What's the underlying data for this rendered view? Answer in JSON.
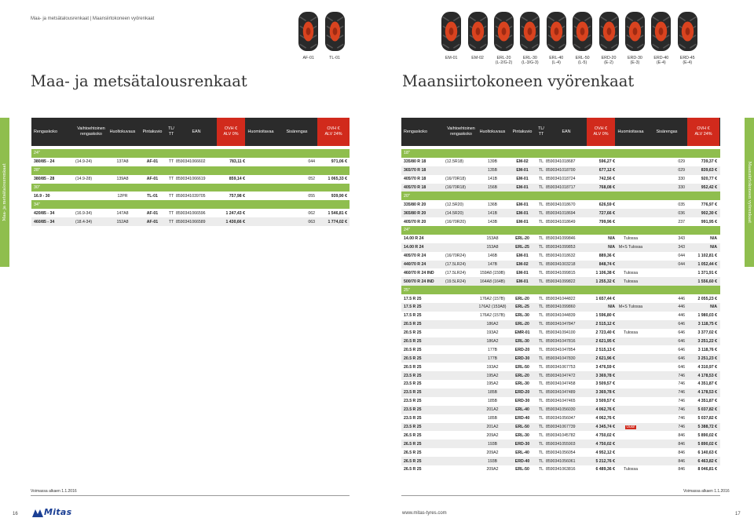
{
  "breadcrumb": "Maa- ja metsätalousrenkaat | Maansiirtokoneen vyörenkaat",
  "left_title": "Maa- ja metsätalousrenkaat",
  "right_title": "Maansiirtokoneen vyörenkaat",
  "left_tyres": [
    {
      "code": "AF-01",
      "code2": ""
    },
    {
      "code": "TL-01",
      "code2": ""
    }
  ],
  "right_tyres": [
    {
      "code": "EM-01",
      "code2": ""
    },
    {
      "code": "EM-02",
      "code2": ""
    },
    {
      "code": "ERL-20",
      "code2": "(L-2/G-2)"
    },
    {
      "code": "ERL-30",
      "code2": "(L-3/G-3)"
    },
    {
      "code": "ERL-40",
      "code2": "(L-4)"
    },
    {
      "code": "ERL-50",
      "code2": "(L-5)"
    },
    {
      "code": "ERD-20",
      "code2": "(E-2)"
    },
    {
      "code": "ERD-30",
      "code2": "(E-3)"
    },
    {
      "code": "ERD-40",
      "code2": "(E-4)"
    },
    {
      "code": "ERD-45",
      "code2": "(E-4)"
    }
  ],
  "headers": {
    "size": "Rengaskoko",
    "alt1": "Vaihtoehtoinen",
    "alt2": "rengaskoko",
    "service": "Huoltokuvaus",
    "pattern": "Pintakuvio",
    "tl1": "TL/",
    "tl2": "TT",
    "ean": "EAN",
    "ovh1": "OVH €",
    "vat0": "ALV 0%",
    "notice": "Huomioitavaa",
    "size_code": "Sisärengas",
    "vat24": "ALV 24%"
  },
  "side_tab_left": "Maa- ja metsätalousrenkaat",
  "side_tab_right": "Maansiirtokoneen vyörenkaat",
  "left_rows": [
    {
      "h": "24\""
    },
    {
      "s": "380/85 - 24",
      "a": "(14.9-24)",
      "sv": "137A8",
      "p": "AF-01",
      "t": "TT",
      "e": "8590341066602",
      "v0": "783,11 €",
      "n": "",
      "k": "044",
      "v24": "971,06 €"
    },
    {
      "h": "28\""
    },
    {
      "s": "380/85 - 28",
      "a": "(14.9-28)",
      "sv": "139A8",
      "p": "AF-01",
      "t": "TT",
      "e": "8590341066619",
      "v0": "859,14 €",
      "n": "",
      "k": "052",
      "v24": "1 065,33 €"
    },
    {
      "h": "30\""
    },
    {
      "s": "16.9 - 30",
      "a": "",
      "sv": "12PR",
      "p": "TL-01",
      "t": "TT",
      "e": "8590341039705",
      "v0": "757,98 €",
      "n": "",
      "k": "055",
      "v24": "939,90 €"
    },
    {
      "h": "34\""
    },
    {
      "s": "420/85 - 34",
      "a": "(16.9-34)",
      "sv": "147A8",
      "p": "AF-01",
      "t": "TT",
      "e": "8590341066596",
      "v0": "1 247,43 €",
      "n": "",
      "k": "062",
      "v24": "1 546,81 €"
    },
    {
      "s": "460/85 - 34",
      "a": "(18.4-34)",
      "sv": "152A8",
      "p": "AF-01",
      "t": "TT",
      "e": "8590341066589",
      "v0": "1 430,66 €",
      "n": "",
      "k": "063",
      "v24": "1 774,02 €"
    }
  ],
  "right_rows": [
    {
      "h": "18\""
    },
    {
      "s": "335/80 R 18",
      "a": "(12.5R18)",
      "sv": "139B",
      "p": "EM-02",
      "t": "TL",
      "e": "8590341018687",
      "v0": "596,27 €",
      "n": "",
      "k": "029",
      "v24": "739,37 €"
    },
    {
      "s": "365/70 R 18",
      "a": "",
      "sv": "135B",
      "p": "EM-01",
      "t": "TL",
      "e": "8590341018700",
      "v0": "677,12 €",
      "n": "",
      "k": "029",
      "v24": "839,63 €"
    },
    {
      "s": "405/70 R 18",
      "a": "(16/70R18)",
      "sv": "141B",
      "p": "EM-01",
      "t": "TL",
      "e": "8590341018724",
      "v0": "742,56 €",
      "n": "",
      "k": "330",
      "v24": "920,77 €"
    },
    {
      "s": "405/70 R 18",
      "a": "(16/70R18)",
      "sv": "156B",
      "p": "EM-01",
      "t": "TL",
      "e": "8590341018717",
      "v0": "768,08 €",
      "n": "",
      "k": "330",
      "v24": "952,42 €"
    },
    {
      "h": "20\""
    },
    {
      "s": "335/80 R 20",
      "a": "(12.5R20)",
      "sv": "136B",
      "p": "EM-01",
      "t": "TL",
      "e": "8590341018670",
      "v0": "626,59 €",
      "n": "",
      "k": "035",
      "v24": "776,97 €"
    },
    {
      "s": "365/80 R 20",
      "a": "(14.5R20)",
      "sv": "141B",
      "p": "EM-01",
      "t": "TL",
      "e": "8590341018694",
      "v0": "727,66 €",
      "n": "",
      "k": "036",
      "v24": "902,30 €"
    },
    {
      "s": "405/70 R 20",
      "a": "(16/70R20)",
      "sv": "143B",
      "p": "EM-01",
      "t": "TL",
      "e": "8590341018649",
      "v0": "799,96 €",
      "n": "",
      "k": "237",
      "v24": "991,95 €"
    },
    {
      "h": "24\""
    },
    {
      "s": "14.00 R 24",
      "a": "",
      "sv": "153A8",
      "p": "ERL-20",
      "t": "TL",
      "e": "8590341099846",
      "v0": "N/A",
      "n": "Tulossa",
      "k": "343",
      "v24": "N/A"
    },
    {
      "s": "14.00 R 24",
      "a": "",
      "sv": "153A8",
      "p": "ERL-25",
      "t": "TL",
      "e": "8590341099853",
      "v0": "N/A",
      "n": "M+S Tulossa",
      "k": "343",
      "v24": "N/A"
    },
    {
      "s": "405/70 R 24",
      "a": "(16/70R24)",
      "sv": "146B",
      "p": "EM-01",
      "t": "TL",
      "e": "8590341018632",
      "v0": "889,36 €",
      "n": "",
      "k": "044",
      "v24": "1 102,81 €"
    },
    {
      "s": "440/70 R 24",
      "a": "(17.5LR24)",
      "sv": "147B",
      "p": "EM-02",
      "t": "TL",
      "e": "8590341003218",
      "v0": "848,74 €",
      "n": "",
      "k": "044",
      "v24": "1 052,44 €"
    },
    {
      "s": "460/70 R 24 IND",
      "a": "(17.5LR24)",
      "sv": "159A8 (159B)",
      "p": "EM-01",
      "t": "TL",
      "e": "8590341099815",
      "v0": "1 106,38 €",
      "n": "Tulossa",
      "k": "",
      "v24": "1 371,91 €"
    },
    {
      "s": "500/70 R 24 IND",
      "a": "(19.5LR24)",
      "sv": "164A8 (164B)",
      "p": "EM-01",
      "t": "TL",
      "e": "8590341099822",
      "v0": "1 255,32 €",
      "n": "Tulossa",
      "k": "",
      "v24": "1 556,60 €"
    },
    {
      "h": "25\""
    },
    {
      "s": "17.5 R 25",
      "a": "",
      "sv": "176A2 (157B)",
      "p": "ERL-20",
      "t": "TL",
      "e": "8590341044822",
      "v0": "1 657,44 €",
      "n": "",
      "k": "446",
      "v24": "2 055,23 €"
    },
    {
      "s": "17.5 R 25",
      "a": "",
      "sv": "176A2 (153A8)",
      "p": "ERL-25",
      "t": "TL",
      "e": "8590341099860",
      "v0": "N/A",
      "n": "M+S Tulossa",
      "k": "446",
      "v24": "N/A"
    },
    {
      "s": "17.5 R 25",
      "a": "",
      "sv": "176A2 (157B)",
      "p": "ERL-30",
      "t": "TL",
      "e": "8590341044839",
      "v0": "1 596,80 €",
      "n": "",
      "k": "446",
      "v24": "1 980,03 €"
    },
    {
      "s": "20.5 R 25",
      "a": "",
      "sv": "186A2",
      "p": "ERL-20",
      "t": "TL",
      "e": "8590341047847",
      "v0": "2 515,12 €",
      "n": "",
      "k": "646",
      "v24": "3 118,75 €"
    },
    {
      "s": "20.5 R 25",
      "a": "",
      "sv": "193A2",
      "p": "EMR-01",
      "t": "TL",
      "e": "8590341094100",
      "v0": "2 723,40 €",
      "n": "Tulossa",
      "k": "646",
      "v24": "3 377,02 €"
    },
    {
      "s": "20.5 R 25",
      "a": "",
      "sv": "186A2",
      "p": "ERL-30",
      "t": "TL",
      "e": "8590341047816",
      "v0": "2 621,95 €",
      "n": "",
      "k": "646",
      "v24": "3 251,22 €"
    },
    {
      "s": "20.5 R 25",
      "a": "",
      "sv": "177B",
      "p": "ERD-20",
      "t": "TL",
      "e": "8590341047854",
      "v0": "2 515,13 €",
      "n": "",
      "k": "646",
      "v24": "3 118,76 €"
    },
    {
      "s": "20.5 R 25",
      "a": "",
      "sv": "177B",
      "p": "ERD-30",
      "t": "TL",
      "e": "8590341047830",
      "v0": "2 621,96 €",
      "n": "",
      "k": "646",
      "v24": "3 251,23 €"
    },
    {
      "s": "20.5 R 25",
      "a": "",
      "sv": "193A2",
      "p": "ERL-50",
      "t": "TL",
      "e": "8590341067753",
      "v0": "3 476,59 €",
      "n": "",
      "k": "646",
      "v24": "4 310,97 €"
    },
    {
      "s": "23.5 R 25",
      "a": "",
      "sv": "195A2",
      "p": "ERL-20",
      "t": "TL",
      "e": "8590341047472",
      "v0": "3 369,78 €",
      "n": "",
      "k": "746",
      "v24": "4 178,53 €"
    },
    {
      "s": "23.5 R 25",
      "a": "",
      "sv": "195A2",
      "p": "ERL-30",
      "t": "TL",
      "e": "8590341047458",
      "v0": "3 509,57 €",
      "n": "",
      "k": "746",
      "v24": "4 351,87 €"
    },
    {
      "s": "23.5 R 25",
      "a": "",
      "sv": "185B",
      "p": "ERD-20",
      "t": "TL",
      "e": "8590341047489",
      "v0": "3 369,78 €",
      "n": "",
      "k": "746",
      "v24": "4 178,53 €"
    },
    {
      "s": "23.5 R 25",
      "a": "",
      "sv": "185B",
      "p": "ERD-30",
      "t": "TL",
      "e": "8590341047465",
      "v0": "3 509,57 €",
      "n": "",
      "k": "746",
      "v24": "4 351,87 €"
    },
    {
      "s": "23.5 R 25",
      "a": "",
      "sv": "201A2",
      "p": "ERL-40",
      "t": "TL",
      "e": "8590341056030",
      "v0": "4 062,76 €",
      "n": "",
      "k": "746",
      "v24": "5 037,82 €"
    },
    {
      "s": "23.5 R 25",
      "a": "",
      "sv": "185B",
      "p": "ERD-40",
      "t": "TL",
      "e": "8590341056047",
      "v0": "4 062,76 €",
      "n": "",
      "k": "746",
      "v24": "5 037,82 €"
    },
    {
      "s": "23.5 R 25",
      "a": "",
      "sv": "201A2",
      "p": "ERL-50",
      "t": "TL",
      "e": "8590341067739",
      "v0": "4 345,74 €",
      "n": "Uusi!",
      "badge": true,
      "k": "746",
      "v24": "5 388,72 €"
    },
    {
      "s": "26.5 R 25",
      "a": "",
      "sv": "209A2",
      "p": "ERL-30",
      "t": "TL",
      "e": "8590341045782",
      "v0": "4 750,02 €",
      "n": "",
      "k": "846",
      "v24": "5 890,02 €"
    },
    {
      "s": "26.5 R 25",
      "a": "",
      "sv": "193B",
      "p": "ERD-30",
      "t": "TL",
      "e": "8590341055903",
      "v0": "4 750,02 €",
      "n": "",
      "k": "846",
      "v24": "5 890,02 €"
    },
    {
      "s": "26.5 R 25",
      "a": "",
      "sv": "209A2",
      "p": "ERL-40",
      "t": "TL",
      "e": "8590341056054",
      "v0": "4 952,12 €",
      "n": "",
      "k": "846",
      "v24": "6 140,63 €"
    },
    {
      "s": "26.5 R 25",
      "a": "",
      "sv": "193B",
      "p": "ERD-40",
      "t": "TL",
      "e": "8590341056061",
      "v0": "5 212,76 €",
      "n": "",
      "k": "846",
      "v24": "6 463,82 €"
    },
    {
      "s": "26.5 R 25",
      "a": "",
      "sv": "209A2",
      "p": "ERL-50",
      "t": "TL",
      "e": "8590341063816",
      "v0": "6 489,36 €",
      "n": "Tulossa",
      "k": "846",
      "v24": "8 046,81 €"
    }
  ],
  "footer": {
    "validity": "Voimassa alkaen 1.1.2016",
    "page_left": "16",
    "page_right": "17",
    "brand": "Mitas",
    "website": "www.mitas-tyres.com"
  }
}
